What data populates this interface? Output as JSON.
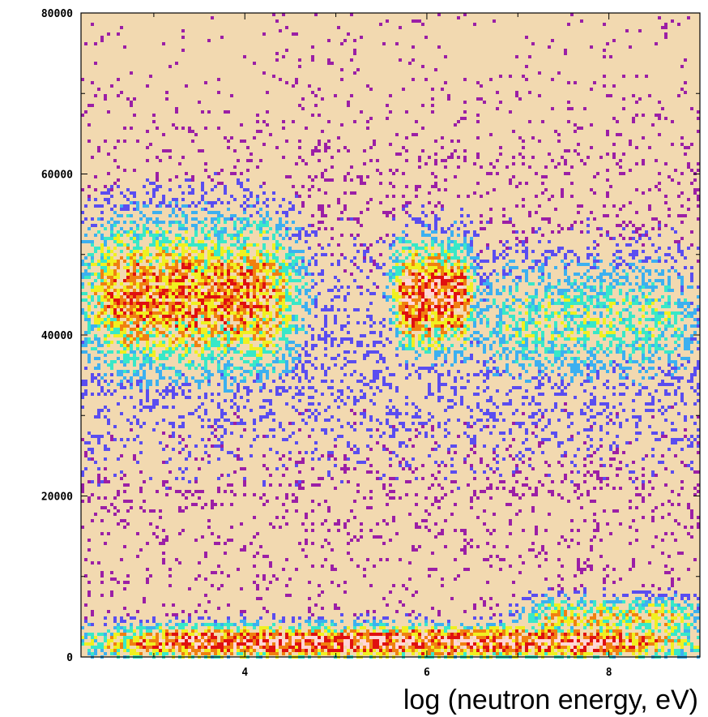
{
  "chart_data": {
    "type": "heatmap",
    "title": "",
    "xlabel": "log (neutron energy, eV)",
    "ylabel": "",
    "xlim": [
      2.2,
      9.0
    ],
    "ylim": [
      0,
      80000
    ],
    "x_ticks": [
      4,
      6,
      8
    ],
    "x_tick_labels": [
      "4",
      "6",
      "8"
    ],
    "y_ticks": [
      0,
      20000,
      40000,
      60000,
      80000
    ],
    "y_tick_labels": [
      "0",
      "20000",
      "40000",
      "60000",
      "80000"
    ],
    "grid": false,
    "colors": {
      "background": "#f2d9b0",
      "low": "#9b1fa6",
      "mid_low": "#5a4df0",
      "mid": "#3cb0f0",
      "mid_high": "#38e8c8",
      "high": "#f0f020",
      "higher": "#f08010",
      "peak": "#e01010",
      "max": "#ffd6d6"
    },
    "density_regions": [
      {
        "x_range": [
          2.2,
          4.6
        ],
        "y_center": 45000,
        "y_halfwidth": 11000,
        "peak_level": 0.85
      },
      {
        "x_range": [
          5.6,
          6.5
        ],
        "y_center": 45000,
        "y_halfwidth": 8000,
        "peak_level": 0.95
      },
      {
        "x_range": [
          6.5,
          9.0
        ],
        "y_center": 42000,
        "y_halfwidth": 9000,
        "peak_level": 0.55
      },
      {
        "x_range": [
          2.2,
          9.0
        ],
        "y_center": 2000,
        "y_halfwidth": 2500,
        "peak_level": 1.0
      },
      {
        "x_range": [
          7.0,
          9.0
        ],
        "y_center": 5000,
        "y_halfwidth": 3000,
        "peak_level": 0.7
      }
    ]
  }
}
